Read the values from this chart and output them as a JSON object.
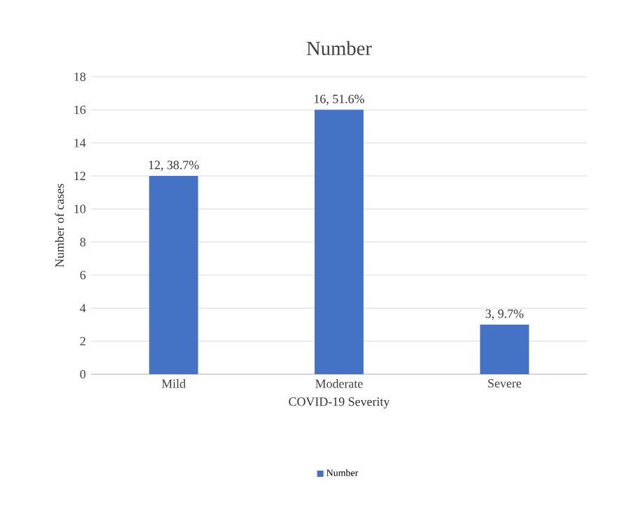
{
  "chart_data": {
    "type": "bar",
    "title": "Number",
    "xlabel": "COVID-19 Severity",
    "ylabel": "Number of cases",
    "categories": [
      "Mild",
      "Moderate",
      "Severe"
    ],
    "series": [
      {
        "name": "Number",
        "color": "#4472c4",
        "values": [
          12,
          16,
          3
        ],
        "value_labels": [
          "12, 38.7%",
          "16, 51.6%",
          "3, 9.7%"
        ]
      }
    ],
    "ylim": [
      0,
      18
    ],
    "yticks": [
      0,
      2,
      4,
      6,
      8,
      10,
      12,
      14,
      16,
      18
    ],
    "grid": "y",
    "legend": "bottom"
  }
}
